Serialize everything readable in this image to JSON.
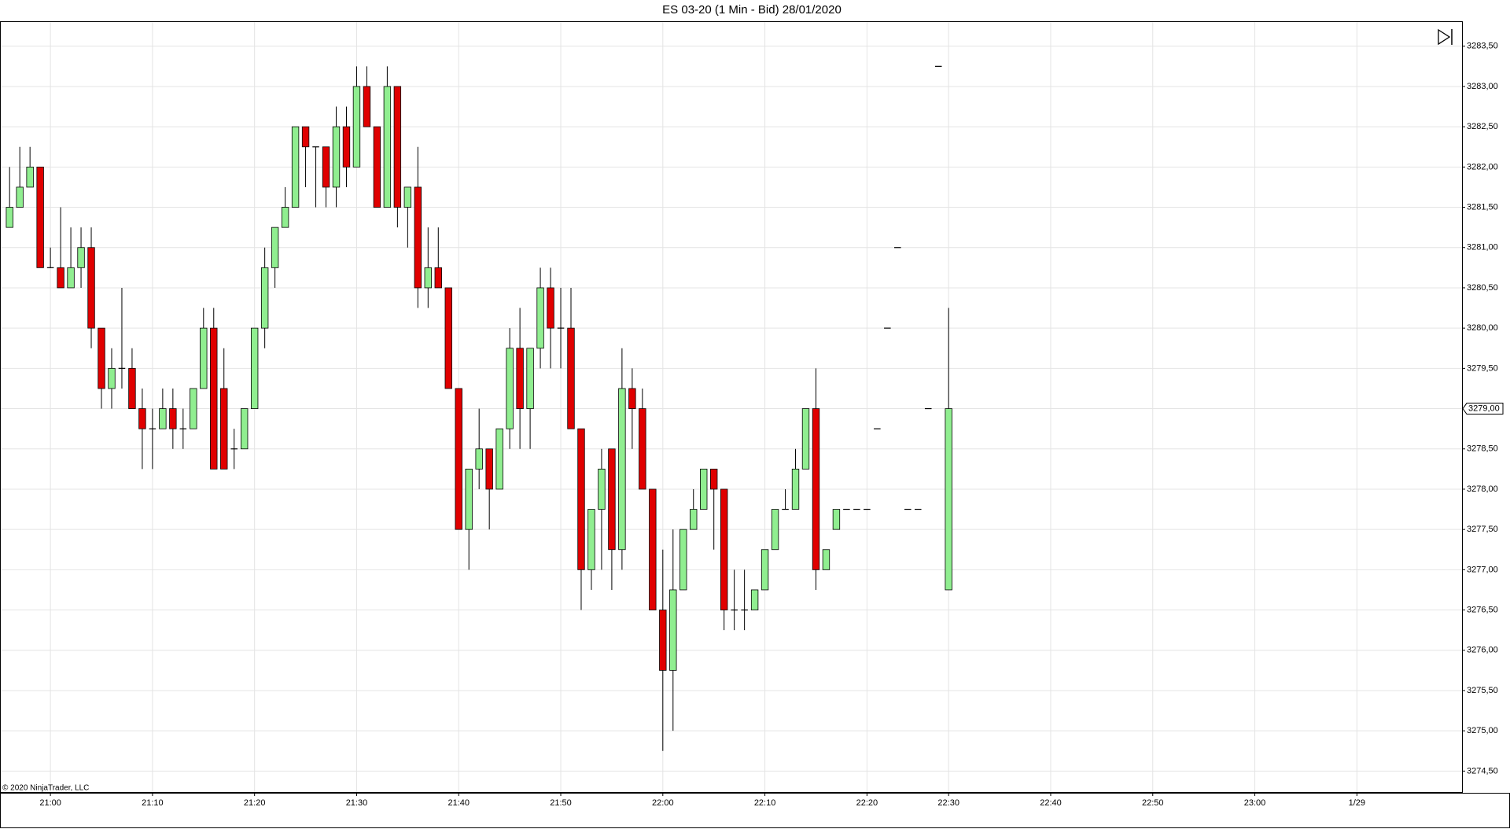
{
  "chart_data": {
    "type": "candlestick",
    "title": "ES 03-20 (1 Min - Bid)  28/01/2020",
    "copyright": "© 2020 NinjaTrader, LLC",
    "up_color": "#90ee90",
    "down_color": "#e00000",
    "grid": true,
    "x": [
      0,
      1,
      2,
      3,
      4,
      5,
      6,
      7,
      8,
      9,
      10,
      11,
      12,
      13,
      14,
      15,
      16,
      17,
      18,
      19,
      20,
      21,
      22,
      23,
      24,
      25,
      26,
      27,
      28,
      29,
      30,
      31,
      32,
      33,
      34,
      35,
      36,
      37,
      38,
      39,
      40,
      41,
      42,
      43,
      44,
      45,
      46,
      47,
      48,
      49,
      50,
      51,
      52,
      53,
      54,
      55,
      56,
      57,
      58,
      59,
      60,
      61,
      62,
      63,
      64,
      65,
      66,
      67,
      68,
      69,
      70,
      71,
      72,
      73,
      74,
      75,
      76,
      77,
      78,
      79,
      80,
      81,
      82,
      83,
      84,
      85,
      86,
      87,
      88,
      89,
      90,
      91,
      92
    ],
    "open": [
      3281.25,
      3281.5,
      3281.75,
      3282,
      3280.75,
      3280.75,
      3280.5,
      3280.75,
      3281,
      3280,
      3279.25,
      3279.5,
      3279.5,
      3279,
      3278.75,
      3278.75,
      3279,
      3278.75,
      3278.75,
      3279.25,
      3280,
      3279.25,
      3278.5,
      3278.5,
      3279,
      3280,
      3280.75,
      3281.25,
      3281.5,
      3282.5,
      3282.25,
      3282.25,
      3281.75,
      3282.5,
      3282,
      3283,
      3282.5,
      3281.5,
      3283,
      3281.5,
      3281.75,
      3280.5,
      3280.75,
      3280.5,
      3279.25,
      3277.5,
      3278.25,
      3278.5,
      3278,
      3278.75,
      3279.75,
      3279,
      3279.75,
      3280.5,
      3280,
      3280,
      3278.75,
      3277,
      3277.75,
      3278.5,
      3277.25,
      3279.25,
      3279,
      3278,
      3276.5,
      3275.75,
      3276.75,
      3277.5,
      3277.75,
      3278.25,
      3278,
      3276.5,
      3276.5,
      3276.5,
      3276.75,
      3277.25,
      3277.75,
      3277.75,
      3278.25,
      3279,
      3277,
      3277.5,
      3277.75,
      3277.75,
      3277.75,
      3278.75,
      3280,
      3281,
      3277.75,
      3277.75,
      3279,
      3283.25,
      3276.75
    ],
    "high": [
      3282,
      3282.25,
      3282.25,
      3282,
      3281,
      3281.5,
      3281.25,
      3281.25,
      3281.25,
      3280,
      3279.75,
      3280.5,
      3279.75,
      3279.25,
      3279,
      3279.25,
      3279.25,
      3279,
      3279.25,
      3280.25,
      3280.25,
      3279.75,
      3278.75,
      3279,
      3280,
      3281,
      3281.25,
      3281.75,
      3282.5,
      3282.5,
      3282.25,
      3282.25,
      3282.75,
      3282.75,
      3283.25,
      3283.25,
      3282.5,
      3283.25,
      3283,
      3281.75,
      3282.25,
      3281.25,
      3281.25,
      3280.5,
      3279.25,
      3278.25,
      3279,
      3278.5,
      3278.75,
      3280,
      3280.25,
      3279.75,
      3280.75,
      3280.75,
      3280.5,
      3280.5,
      3278.75,
      3277.75,
      3278.5,
      3278.5,
      3279.75,
      3279.5,
      3279.25,
      3278,
      3277.25,
      3277.5,
      3277.5,
      3278,
      3278.25,
      3278.25,
      3278,
      3277,
      3277,
      3276.75,
      3277.25,
      3277.75,
      3278,
      3278.5,
      3279,
      3279.5,
      3277.25,
      3277.75,
      3277.75,
      3277.75,
      3277.75,
      3278.75,
      3280,
      3281,
      3277.75,
      3277.75,
      3279,
      3283.25,
      3280.25
    ],
    "low": [
      3281.25,
      3281.5,
      3281.75,
      3280.75,
      3280.75,
      3280.5,
      3280.5,
      3280.5,
      3279.75,
      3279,
      3279,
      3279.25,
      3279,
      3278.25,
      3278.25,
      3278.75,
      3278.5,
      3278.5,
      3278.75,
      3279.25,
      3278.25,
      3278.25,
      3278.25,
      3278.5,
      3279,
      3279.75,
      3280.5,
      3281.25,
      3281.5,
      3281.75,
      3281.5,
      3281.5,
      3281.5,
      3281.75,
      3282,
      3282.5,
      3281.5,
      3281.5,
      3281.25,
      3281,
      3280.25,
      3280.25,
      3280.5,
      3279.25,
      3277.5,
      3277,
      3278,
      3277.5,
      3278,
      3278.5,
      3278.5,
      3278.5,
      3279.5,
      3279.5,
      3279.5,
      3278.75,
      3276.5,
      3276.75,
      3277,
      3276.75,
      3277,
      3278.5,
      3278,
      3276.5,
      3274.75,
      3275,
      3276.75,
      3277.5,
      3277.75,
      3277.25,
      3276.25,
      3276.25,
      3276.25,
      3276.5,
      3276.75,
      3277.25,
      3277.75,
      3277.75,
      3278.25,
      3276.75,
      3277,
      3277.5,
      3277.75,
      3277.75,
      3277.75,
      3278.75,
      3280,
      3281,
      3277.75,
      3277.75,
      3279,
      3283.25,
      3276.75
    ],
    "close": [
      3281.5,
      3281.75,
      3282,
      3280.75,
      3280.75,
      3280.5,
      3280.75,
      3281,
      3280,
      3279.25,
      3279.5,
      3279.5,
      3279,
      3278.75,
      3278.75,
      3279,
      3278.75,
      3278.75,
      3279.25,
      3280,
      3278.25,
      3278.25,
      3278.5,
      3279,
      3280,
      3280.75,
      3281.25,
      3281.5,
      3282.5,
      3282.25,
      3282.25,
      3281.75,
      3282.5,
      3282,
      3283,
      3282.5,
      3281.5,
      3283,
      3281.5,
      3281.75,
      3280.5,
      3280.75,
      3280.5,
      3279.25,
      3277.5,
      3278.25,
      3278.5,
      3278,
      3278.75,
      3279.75,
      3279,
      3279.75,
      3280.5,
      3280,
      3280,
      3278.75,
      3277,
      3277.75,
      3278.25,
      3277.25,
      3279.25,
      3279,
      3278,
      3276.5,
      3275.75,
      3276.75,
      3277.5,
      3277.75,
      3278.25,
      3278,
      3276.5,
      3276.5,
      3276.5,
      3276.75,
      3277.25,
      3277.75,
      3277.75,
      3278.25,
      3279,
      3277,
      3277.25,
      3277.75,
      3277.75,
      3277.75,
      3277.75,
      3278.75,
      3280,
      3281,
      3277.75,
      3277.75,
      3279,
      3283.25,
      3279
    ],
    "last_price": {
      "value": 3279,
      "label": "3279,00"
    },
    "xlim": [
      -0.94,
      142.3
    ],
    "xticks": [
      {
        "value": 4,
        "label": "21:00"
      },
      {
        "value": 14,
        "label": "21:10"
      },
      {
        "value": 24,
        "label": "21:20"
      },
      {
        "value": 34,
        "label": "21:30"
      },
      {
        "value": 44,
        "label": "21:40"
      },
      {
        "value": 54,
        "label": "21:50"
      },
      {
        "value": 64,
        "label": "22:00"
      },
      {
        "value": 74,
        "label": "22:10"
      },
      {
        "value": 84,
        "label": "22:20"
      },
      {
        "value": 92,
        "label": "22:30"
      },
      {
        "value": 102,
        "label": "22:40"
      },
      {
        "value": 112,
        "label": "22:50"
      },
      {
        "value": 122,
        "label": "23:00"
      },
      {
        "value": 132,
        "label": "1/29"
      }
    ],
    "ylim": [
      3274.23,
      3283.81
    ],
    "yticks": [
      {
        "value": 3274.5,
        "label": "3274,50"
      },
      {
        "value": 3275,
        "label": "3275,00"
      },
      {
        "value": 3275.5,
        "label": "3275,50"
      },
      {
        "value": 3276,
        "label": "3276,00"
      },
      {
        "value": 3276.5,
        "label": "3276,50"
      },
      {
        "value": 3277,
        "label": "3277,00"
      },
      {
        "value": 3277.5,
        "label": "3277,50"
      },
      {
        "value": 3278,
        "label": "3278,00"
      },
      {
        "value": 3278.5,
        "label": "3278,50"
      },
      {
        "value": 3279,
        "label": "3279,00"
      },
      {
        "value": 3279.5,
        "label": "3279,50"
      },
      {
        "value": 3280,
        "label": "3280,00"
      },
      {
        "value": 3280.5,
        "label": "3280,50"
      },
      {
        "value": 3281,
        "label": "3281,00"
      },
      {
        "value": 3281.5,
        "label": "3281,50"
      },
      {
        "value": 3282,
        "label": "3282,00"
      },
      {
        "value": 3282.5,
        "label": "3282,50"
      },
      {
        "value": 3283,
        "label": "3283,00"
      },
      {
        "value": 3283.5,
        "label": "3283,50"
      }
    ]
  }
}
